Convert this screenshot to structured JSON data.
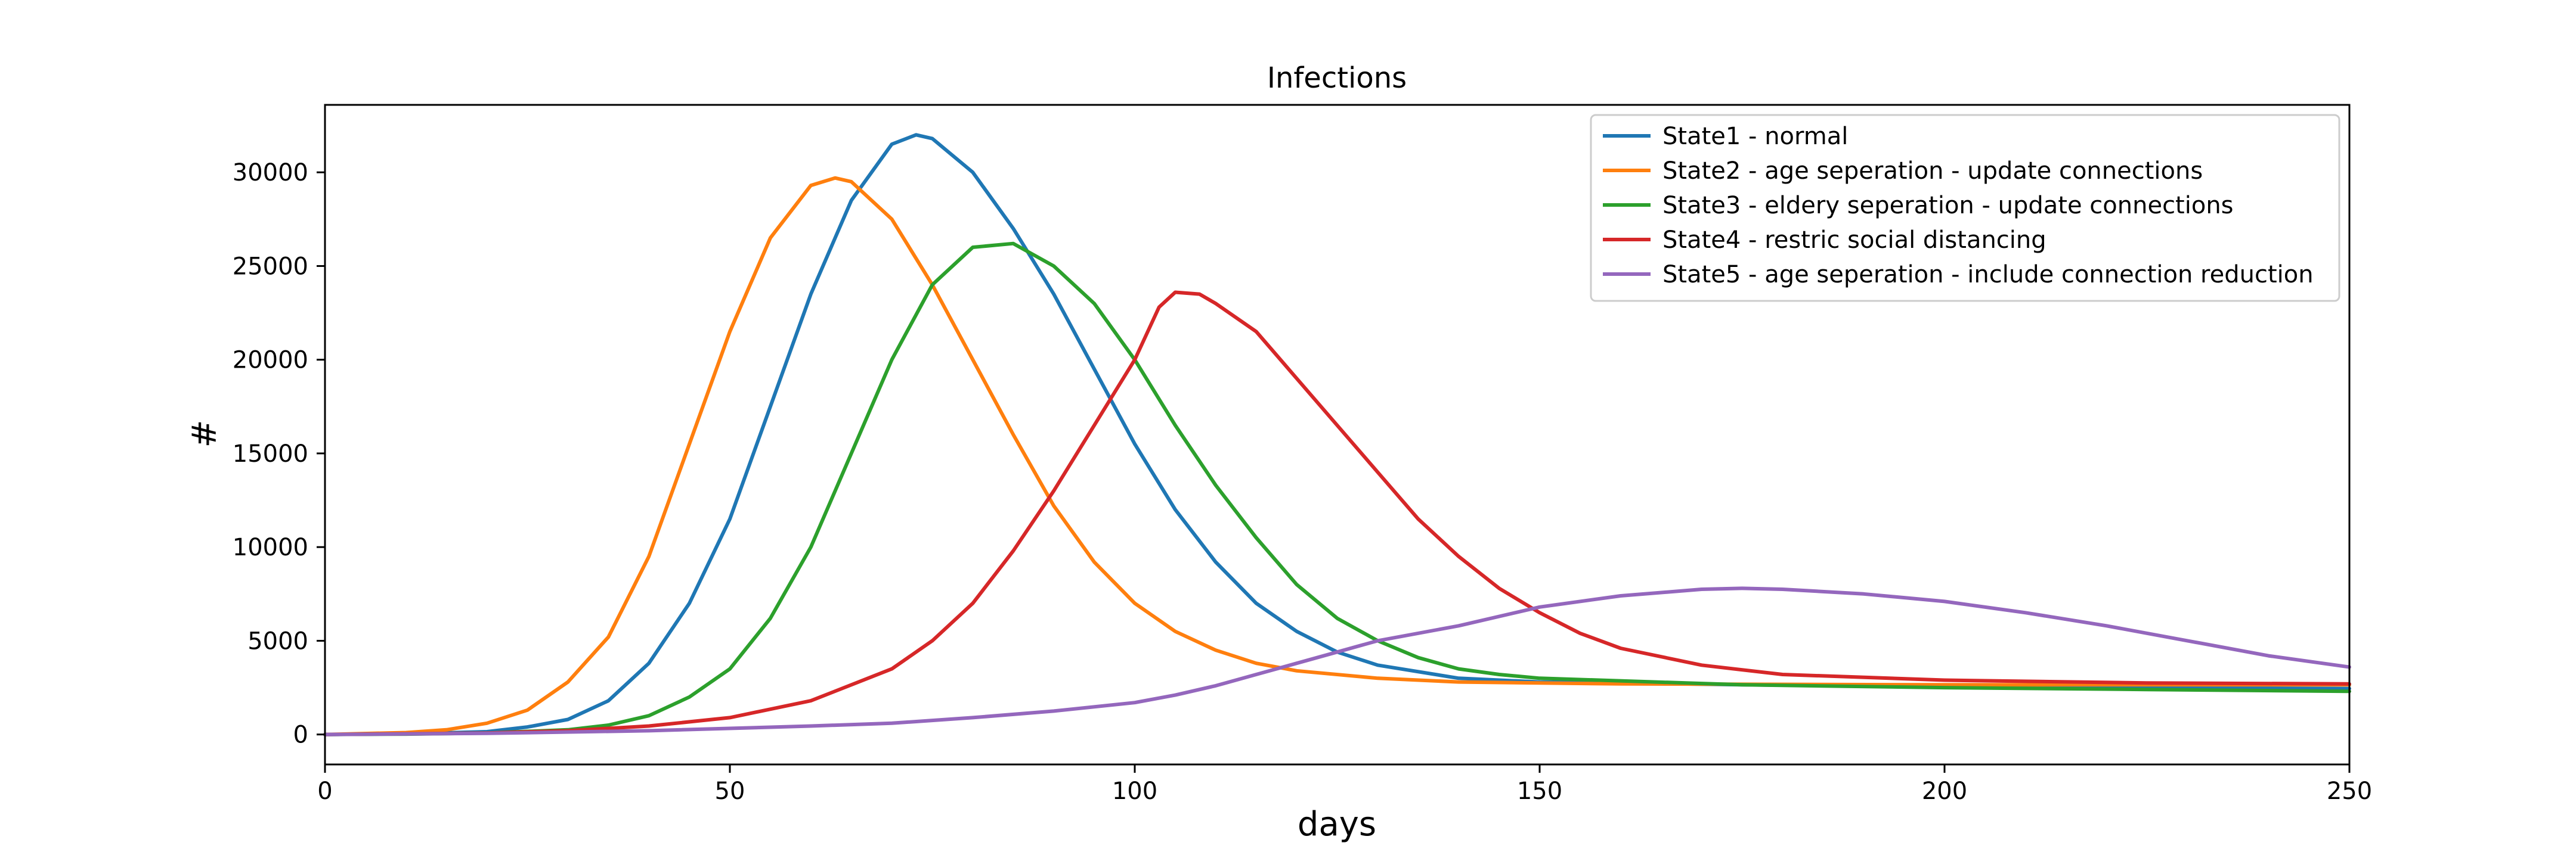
{
  "chart_data": {
    "type": "line",
    "title": "Infections",
    "xlabel": "days",
    "ylabel": "#",
    "xlim": [
      0,
      250
    ],
    "ylim": [
      -1600,
      33600
    ],
    "xticks": [
      0,
      50,
      100,
      150,
      200,
      250
    ],
    "yticks": [
      0,
      5000,
      10000,
      15000,
      20000,
      25000,
      30000
    ],
    "xtick_labels": [
      "0",
      "50",
      "100",
      "150",
      "200",
      "250"
    ],
    "ytick_labels": [
      "0",
      "5000",
      "10000",
      "15000",
      "20000",
      "25000",
      "30000"
    ],
    "grid": false,
    "legend_position": "top-right",
    "series": [
      {
        "name": "State1 - normal",
        "color": "#1f77b4",
        "points": [
          [
            0,
            0
          ],
          [
            10,
            30
          ],
          [
            20,
            150
          ],
          [
            25,
            400
          ],
          [
            30,
            800
          ],
          [
            35,
            1800
          ],
          [
            40,
            3800
          ],
          [
            45,
            7000
          ],
          [
            50,
            11500
          ],
          [
            55,
            17500
          ],
          [
            60,
            23500
          ],
          [
            65,
            28500
          ],
          [
            70,
            31500
          ],
          [
            73,
            32000
          ],
          [
            75,
            31800
          ],
          [
            80,
            30000
          ],
          [
            85,
            27000
          ],
          [
            90,
            23500
          ],
          [
            95,
            19500
          ],
          [
            100,
            15500
          ],
          [
            105,
            12000
          ],
          [
            110,
            9200
          ],
          [
            115,
            7000
          ],
          [
            120,
            5500
          ],
          [
            125,
            4400
          ],
          [
            130,
            3700
          ],
          [
            140,
            3000
          ],
          [
            150,
            2800
          ],
          [
            175,
            2650
          ],
          [
            200,
            2550
          ],
          [
            225,
            2500
          ],
          [
            250,
            2450
          ]
        ]
      },
      {
        "name": "State2 - age seperation - update connections",
        "color": "#ff7f0e",
        "points": [
          [
            0,
            0
          ],
          [
            10,
            100
          ],
          [
            15,
            250
          ],
          [
            20,
            600
          ],
          [
            25,
            1300
          ],
          [
            30,
            2800
          ],
          [
            35,
            5200
          ],
          [
            40,
            9500
          ],
          [
            45,
            15500
          ],
          [
            50,
            21500
          ],
          [
            55,
            26500
          ],
          [
            60,
            29300
          ],
          [
            63,
            29700
          ],
          [
            65,
            29500
          ],
          [
            70,
            27500
          ],
          [
            75,
            24000
          ],
          [
            80,
            20000
          ],
          [
            85,
            16000
          ],
          [
            90,
            12200
          ],
          [
            95,
            9200
          ],
          [
            100,
            7000
          ],
          [
            105,
            5500
          ],
          [
            110,
            4500
          ],
          [
            115,
            3800
          ],
          [
            120,
            3400
          ],
          [
            130,
            3000
          ],
          [
            140,
            2800
          ],
          [
            160,
            2700
          ],
          [
            200,
            2650
          ],
          [
            250,
            2650
          ]
        ]
      },
      {
        "name": "State3 - eldery seperation - update connections",
        "color": "#2ca02c",
        "points": [
          [
            0,
            0
          ],
          [
            10,
            20
          ],
          [
            20,
            80
          ],
          [
            30,
            250
          ],
          [
            35,
            500
          ],
          [
            40,
            1000
          ],
          [
            45,
            2000
          ],
          [
            50,
            3500
          ],
          [
            55,
            6200
          ],
          [
            60,
            10000
          ],
          [
            65,
            15000
          ],
          [
            70,
            20000
          ],
          [
            75,
            24000
          ],
          [
            80,
            26000
          ],
          [
            85,
            26200
          ],
          [
            90,
            25000
          ],
          [
            95,
            23000
          ],
          [
            100,
            20000
          ],
          [
            105,
            16500
          ],
          [
            110,
            13300
          ],
          [
            115,
            10500
          ],
          [
            120,
            8000
          ],
          [
            125,
            6200
          ],
          [
            130,
            5000
          ],
          [
            135,
            4100
          ],
          [
            140,
            3500
          ],
          [
            145,
            3200
          ],
          [
            150,
            3000
          ],
          [
            175,
            2650
          ],
          [
            200,
            2500
          ],
          [
            225,
            2400
          ],
          [
            250,
            2300
          ]
        ]
      },
      {
        "name": "State4 - restric social distancing",
        "color": "#d62728",
        "points": [
          [
            0,
            0
          ],
          [
            20,
            80
          ],
          [
            30,
            200
          ],
          [
            40,
            450
          ],
          [
            50,
            900
          ],
          [
            60,
            1800
          ],
          [
            70,
            3500
          ],
          [
            75,
            5000
          ],
          [
            80,
            7000
          ],
          [
            85,
            9800
          ],
          [
            90,
            13000
          ],
          [
            95,
            16500
          ],
          [
            100,
            20000
          ],
          [
            103,
            22800
          ],
          [
            105,
            23600
          ],
          [
            108,
            23500
          ],
          [
            110,
            23000
          ],
          [
            115,
            21500
          ],
          [
            120,
            19000
          ],
          [
            125,
            16500
          ],
          [
            130,
            14000
          ],
          [
            135,
            11500
          ],
          [
            140,
            9500
          ],
          [
            145,
            7800
          ],
          [
            150,
            6500
          ],
          [
            155,
            5400
          ],
          [
            160,
            4600
          ],
          [
            170,
            3700
          ],
          [
            180,
            3200
          ],
          [
            200,
            2900
          ],
          [
            225,
            2750
          ],
          [
            250,
            2700
          ]
        ]
      },
      {
        "name": "State5 - age seperation - include connection reduction",
        "color": "#9467bd",
        "points": [
          [
            0,
            0
          ],
          [
            20,
            60
          ],
          [
            40,
            200
          ],
          [
            60,
            450
          ],
          [
            70,
            600
          ],
          [
            80,
            900
          ],
          [
            90,
            1250
          ],
          [
            100,
            1700
          ],
          [
            105,
            2100
          ],
          [
            110,
            2600
          ],
          [
            115,
            3200
          ],
          [
            120,
            3800
          ],
          [
            125,
            4400
          ],
          [
            130,
            5000
          ],
          [
            140,
            5800
          ],
          [
            150,
            6800
          ],
          [
            160,
            7400
          ],
          [
            170,
            7750
          ],
          [
            175,
            7800
          ],
          [
            180,
            7750
          ],
          [
            190,
            7500
          ],
          [
            200,
            7100
          ],
          [
            210,
            6500
          ],
          [
            220,
            5800
          ],
          [
            230,
            5000
          ],
          [
            240,
            4200
          ],
          [
            250,
            3600
          ]
        ]
      }
    ]
  }
}
